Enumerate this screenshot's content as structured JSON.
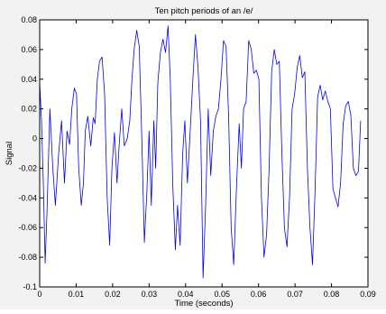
{
  "chart_data": {
    "type": "line",
    "title": "Ten pitch periods of an /e/",
    "xlabel": "Time (seconds)",
    "ylabel": "Signal",
    "xlim": [
      0,
      0.09
    ],
    "ylim": [
      -0.1,
      0.08
    ],
    "x_ticks": [
      0,
      0.01,
      0.02,
      0.03,
      0.04,
      0.05,
      0.06,
      0.07,
      0.08,
      0.09
    ],
    "y_ticks": [
      -0.1,
      -0.08,
      -0.06,
      -0.04,
      -0.02,
      0,
      0.02,
      0.04,
      0.06,
      0.08
    ],
    "x_tick_labels": [
      "0",
      "0.01",
      "0.02",
      "0.03",
      "0.04",
      "0.05",
      "0.06",
      "0.07",
      "0.08",
      "0.09"
    ],
    "y_tick_labels": [
      "-0.1",
      "-0.08",
      "-0.06",
      "-0.04",
      "-0.02",
      "0",
      "0.02",
      "0.04",
      "0.06",
      "0.08"
    ],
    "grid": false,
    "line_color": "#0000ff",
    "series": [
      {
        "x": [
          0.0,
          0.0005,
          0.001,
          0.0015,
          0.002,
          0.0028,
          0.0036,
          0.0043,
          0.0052,
          0.006,
          0.0068,
          0.0075,
          0.0082,
          0.0088,
          0.0095,
          0.0101,
          0.0107,
          0.0114,
          0.012,
          0.0125,
          0.0132,
          0.014,
          0.0147,
          0.0152,
          0.0158,
          0.0164,
          0.0171,
          0.0178,
          0.0185,
          0.0192,
          0.0198,
          0.0205,
          0.0212,
          0.0218,
          0.0225,
          0.0232,
          0.024,
          0.0247,
          0.0253,
          0.0259,
          0.0266,
          0.0273,
          0.028,
          0.0287,
          0.0294,
          0.03,
          0.0306,
          0.0313,
          0.0318,
          0.0324,
          0.0331,
          0.0338,
          0.0345,
          0.0352,
          0.0358,
          0.0365,
          0.0372,
          0.0378,
          0.0385,
          0.0392,
          0.0398,
          0.0405,
          0.0412,
          0.042,
          0.0427,
          0.0434,
          0.0441,
          0.0448,
          0.0455,
          0.0462,
          0.0469,
          0.0476,
          0.0483,
          0.049,
          0.0497,
          0.0504,
          0.0511,
          0.0518,
          0.0525,
          0.0532,
          0.054,
          0.0547,
          0.0553,
          0.0559,
          0.0566,
          0.0573,
          0.058,
          0.0587,
          0.0594,
          0.0601,
          0.0608,
          0.0615,
          0.0622,
          0.0629,
          0.0636,
          0.0643,
          0.065,
          0.0657,
          0.0664,
          0.0671,
          0.0678,
          0.0685,
          0.0692,
          0.0699,
          0.0706,
          0.0713,
          0.072,
          0.0727,
          0.0734,
          0.0741,
          0.0748,
          0.0755,
          0.0762,
          0.0769,
          0.0776,
          0.0783,
          0.079,
          0.0797,
          0.0804,
          0.0811,
          0.0818,
          0.0825,
          0.0832,
          0.0839,
          0.0846,
          0.0853,
          0.086,
          0.0867,
          0.0874,
          0.088
        ],
        "y": [
          0.038,
          0.012,
          -0.03,
          -0.084,
          -0.05,
          0.02,
          -0.02,
          -0.045,
          -0.01,
          0.012,
          -0.03,
          0.005,
          -0.004,
          0.02,
          0.034,
          0.03,
          -0.02,
          -0.045,
          -0.03,
          0.005,
          0.015,
          -0.005,
          0.014,
          0.01,
          0.04,
          0.052,
          0.055,
          0.03,
          -0.04,
          -0.072,
          -0.02,
          0.004,
          -0.03,
          -0.004,
          0.02,
          -0.005,
          0.0,
          0.012,
          0.04,
          0.06,
          0.073,
          0.062,
          0.0,
          -0.07,
          -0.035,
          0.005,
          -0.045,
          0.012,
          -0.02,
          0.038,
          0.058,
          0.067,
          0.058,
          0.076,
          0.04,
          -0.032,
          -0.075,
          -0.045,
          -0.072,
          -0.01,
          0.012,
          -0.03,
          0.002,
          0.04,
          0.07,
          0.048,
          0.012,
          -0.094,
          -0.045,
          0.02,
          -0.025,
          0.005,
          0.015,
          0.02,
          0.04,
          0.066,
          0.062,
          0.015,
          -0.06,
          -0.085,
          -0.03,
          0.01,
          -0.02,
          0.02,
          0.025,
          0.066,
          0.06,
          0.044,
          0.046,
          0.04,
          -0.04,
          -0.08,
          -0.065,
          -0.02,
          0.045,
          0.06,
          0.05,
          0.052,
          -0.01,
          -0.06,
          -0.073,
          -0.04,
          0.02,
          0.03,
          0.048,
          0.056,
          0.041,
          0.045,
          -0.02,
          -0.06,
          -0.085,
          -0.035,
          0.028,
          0.036,
          0.026,
          0.032,
          0.025,
          0.02,
          -0.034,
          -0.04,
          -0.046,
          -0.03,
          0.01,
          0.022,
          0.025,
          0.016,
          -0.02,
          -0.025,
          -0.022,
          0.012
        ]
      }
    ]
  }
}
